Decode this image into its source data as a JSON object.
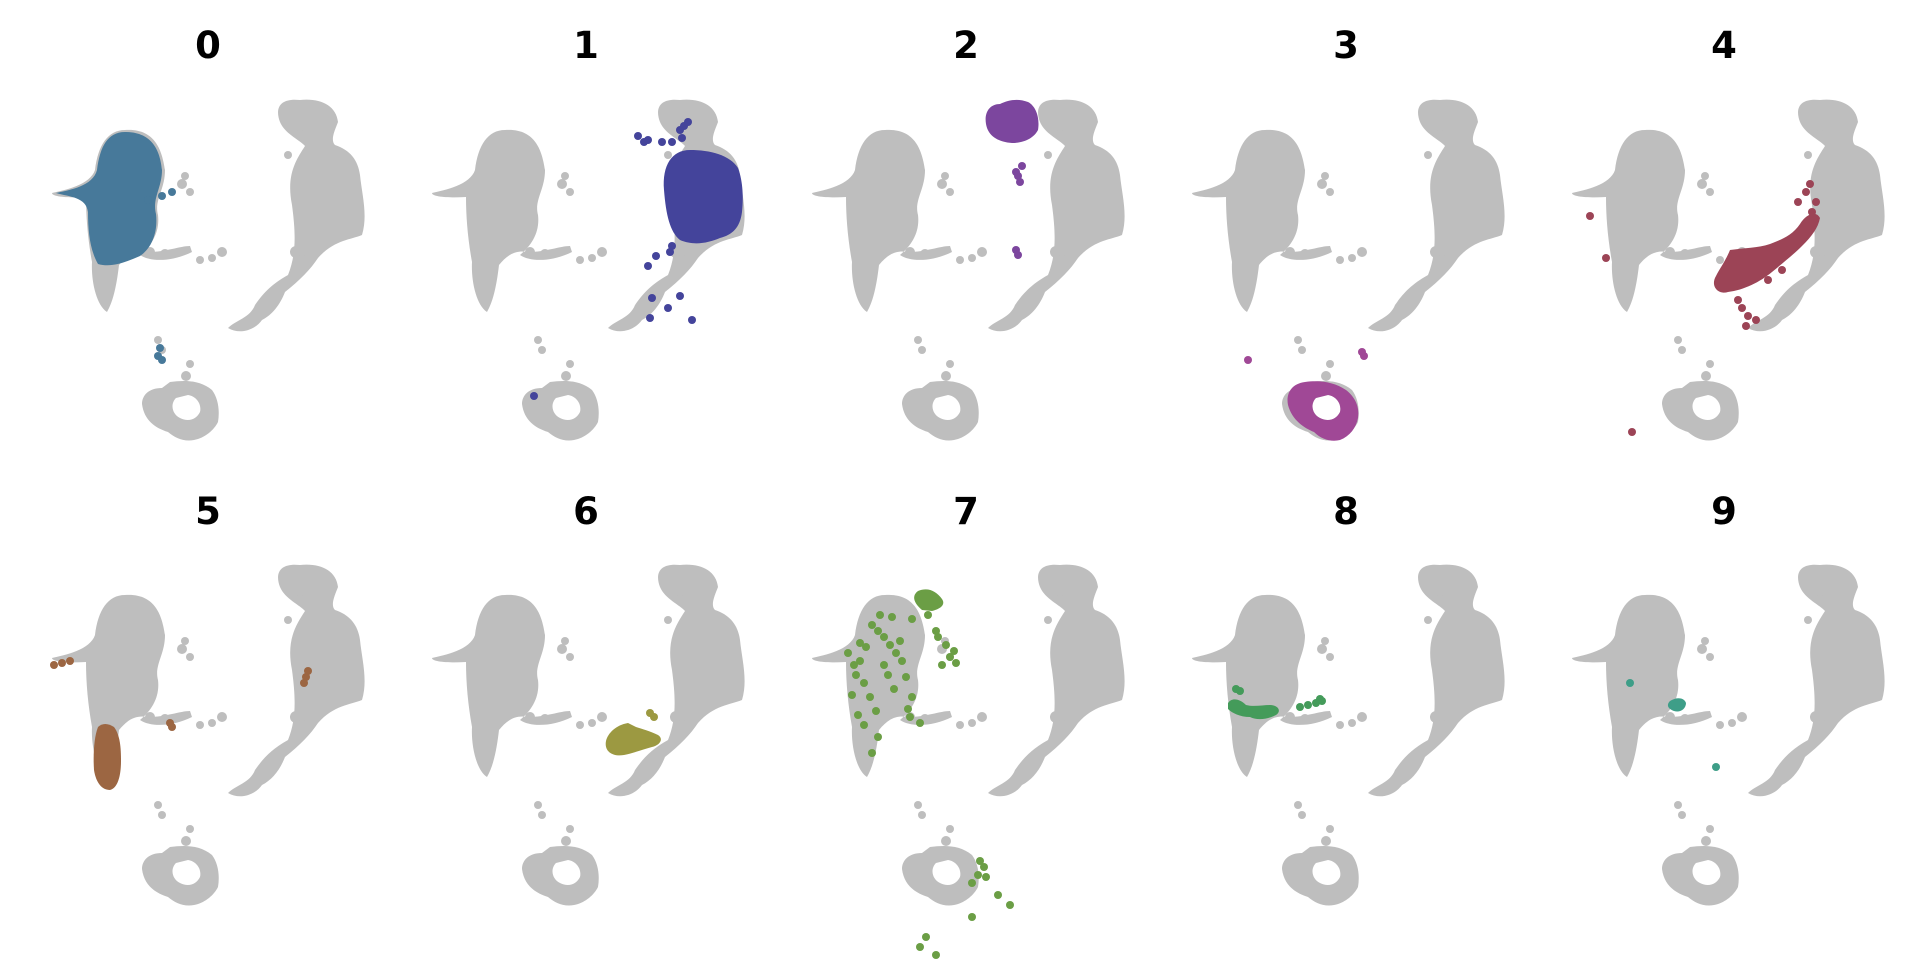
{
  "colors": {
    "background_points": "#bebebe",
    "clusters": [
      "#47799a",
      "#44449b",
      "#7c469e",
      "#a04896",
      "#9c4456",
      "#9c6642",
      "#9c9941",
      "#6b9e45",
      "#449b5a",
      "#3e9e88"
    ]
  },
  "chart_data": {
    "type": "scatter",
    "grid": false,
    "axes_visible": false,
    "legend": "none",
    "panels": [
      {
        "title": "0",
        "cluster": 0
      },
      {
        "title": "1",
        "cluster": 1
      },
      {
        "title": "2",
        "cluster": 2
      },
      {
        "title": "3",
        "cluster": 3
      },
      {
        "title": "4",
        "cluster": 4
      },
      {
        "title": "5",
        "cluster": 5
      },
      {
        "title": "6",
        "cluster": 6
      },
      {
        "title": "7",
        "cluster": 7
      },
      {
        "title": "8",
        "cluster": 8
      },
      {
        "title": "9",
        "cluster": 9
      }
    ]
  }
}
